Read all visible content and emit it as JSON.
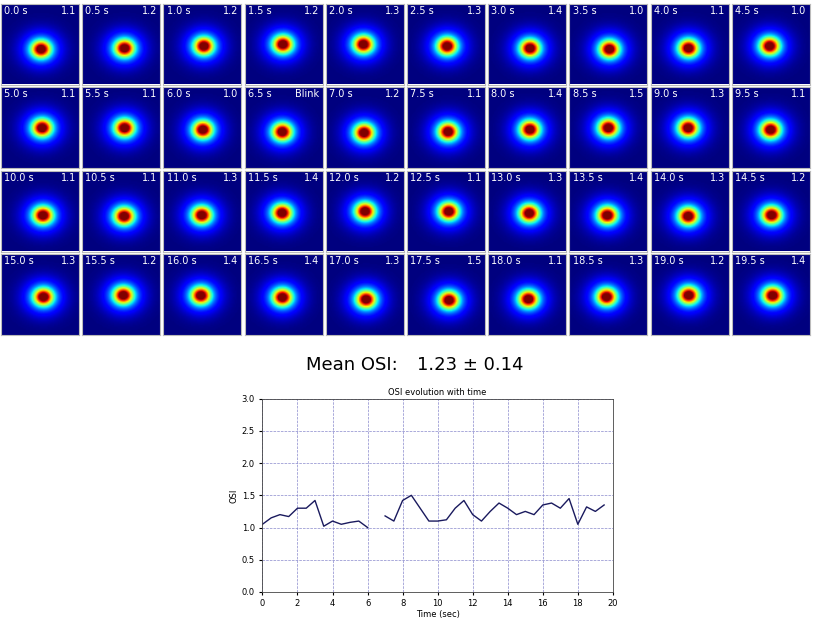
{
  "frames": [
    {
      "time": "0.0 s",
      "osi": "1.1"
    },
    {
      "time": "0.5 s",
      "osi": "1.2"
    },
    {
      "time": "1.0 s",
      "osi": "1.2"
    },
    {
      "time": "1.5 s",
      "osi": "1.2"
    },
    {
      "time": "2.0 s",
      "osi": "1.3"
    },
    {
      "time": "2.5 s",
      "osi": "1.3"
    },
    {
      "time": "3.0 s",
      "osi": "1.4"
    },
    {
      "time": "3.5 s",
      "osi": "1.0"
    },
    {
      "time": "4.0 s",
      "osi": "1.1"
    },
    {
      "time": "4.5 s",
      "osi": "1.0"
    },
    {
      "time": "5.0 s",
      "osi": "1.1"
    },
    {
      "time": "5.5 s",
      "osi": "1.1"
    },
    {
      "time": "6.0 s",
      "osi": "1.0"
    },
    {
      "time": "6.5 s",
      "osi": "Blink"
    },
    {
      "time": "7.0 s",
      "osi": "1.2"
    },
    {
      "time": "7.5 s",
      "osi": "1.1"
    },
    {
      "time": "8.0 s",
      "osi": "1.4"
    },
    {
      "time": "8.5 s",
      "osi": "1.5"
    },
    {
      "time": "9.0 s",
      "osi": "1.3"
    },
    {
      "time": "9.5 s",
      "osi": "1.1"
    },
    {
      "time": "10.0 s",
      "osi": "1.1"
    },
    {
      "time": "10.5 s",
      "osi": "1.1"
    },
    {
      "time": "11.0 s",
      "osi": "1.3"
    },
    {
      "time": "11.5 s",
      "osi": "1.4"
    },
    {
      "time": "12.0 s",
      "osi": "1.2"
    },
    {
      "time": "12.5 s",
      "osi": "1.1"
    },
    {
      "time": "13.0 s",
      "osi": "1.3"
    },
    {
      "time": "13.5 s",
      "osi": "1.4"
    },
    {
      "time": "14.0 s",
      "osi": "1.3"
    },
    {
      "time": "14.5 s",
      "osi": "1.2"
    },
    {
      "time": "15.0 s",
      "osi": "1.3"
    },
    {
      "time": "15.5 s",
      "osi": "1.2"
    },
    {
      "time": "16.0 s",
      "osi": "1.4"
    },
    {
      "time": "16.5 s",
      "osi": "1.4"
    },
    {
      "time": "17.0 s",
      "osi": "1.3"
    },
    {
      "time": "17.5 s",
      "osi": "1.5"
    },
    {
      "time": "18.0 s",
      "osi": "1.1"
    },
    {
      "time": "18.5 s",
      "osi": "1.3"
    },
    {
      "time": "19.0 s",
      "osi": "1.2"
    },
    {
      "time": "19.5 s",
      "osi": "1.4"
    }
  ],
  "mean_osi": {
    "label": "Mean OSI:",
    "value": "1.23 ± 0.14"
  },
  "chart_data": {
    "type": "line",
    "title": "OSI evolution with time",
    "x_label": "Time (sec)",
    "y_label": "OSI",
    "x": [
      0,
      0.5,
      1,
      1.5,
      2,
      2.5,
      3,
      3.5,
      4,
      4.5,
      5,
      5.5,
      6,
      6.5,
      7,
      7.5,
      8,
      8.5,
      9,
      9.5,
      10,
      10.5,
      11,
      11.5,
      12,
      12.5,
      13,
      13.5,
      14,
      14.5,
      15,
      15.5,
      16,
      16.5,
      17,
      17.5,
      18,
      18.5,
      19,
      19.5
    ],
    "values": [
      1.05,
      1.15,
      1.2,
      1.17,
      1.3,
      1.3,
      1.42,
      1.02,
      1.1,
      1.05,
      1.08,
      1.1,
      1.0,
      null,
      1.18,
      1.1,
      1.42,
      1.5,
      1.3,
      1.1,
      1.1,
      1.12,
      1.3,
      1.42,
      1.2,
      1.1,
      1.25,
      1.38,
      1.3,
      1.2,
      1.25,
      1.2,
      1.35,
      1.38,
      1.3,
      1.45,
      1.05,
      1.32,
      1.25,
      1.35
    ],
    "color": "#1a1a5e",
    "xlim": [
      0,
      20
    ],
    "xticks": [
      0,
      2,
      4,
      6,
      8,
      10,
      12,
      14,
      16,
      18,
      20
    ],
    "ylim": [
      0,
      3
    ],
    "yticks": [
      {
        "value": 0,
        "label": "0.0"
      },
      {
        "value": 0.5,
        "label": "0.5"
      },
      {
        "value": 1,
        "label": "1.0"
      },
      {
        "value": 1.5,
        "label": "1.5"
      },
      {
        "value": 2,
        "label": "2.0"
      },
      {
        "value": 2.5,
        "label": "2.5"
      },
      {
        "value": 3,
        "label": "3.0"
      }
    ],
    "grid": true
  }
}
